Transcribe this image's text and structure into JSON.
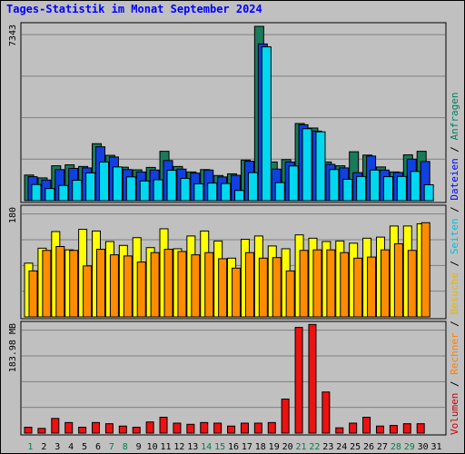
{
  "title": "Tages-Statistik im Monat September 2024",
  "right_legend": [
    {
      "text": "Volumen",
      "color": "#cc0000"
    },
    {
      "text": "Rechner",
      "color": "#ff8000"
    },
    {
      "text": "Besuche",
      "color": "#e6b800"
    },
    {
      "text": "Seiten",
      "color": "#00c0e0"
    },
    {
      "text": "Dateien",
      "color": "#0000ff"
    },
    {
      "text": "Anfragen",
      "color": "#008060"
    }
  ],
  "colors": {
    "anfragen": "#1a7a5a",
    "dateien": "#1040e0",
    "seiten": "#00d8f0",
    "besuche": "#ffff00",
    "rechner": "#ff8c00",
    "volumen": "#ee1111",
    "weekend_label": "#008040",
    "weekday_label": "#000000",
    "panel_bg": "#c0c0c0"
  },
  "chart_data": [
    {
      "type": "bar",
      "panel": "top",
      "y_max_label": "7343",
      "ylim": [
        0,
        7343
      ],
      "grid": true,
      "categories": [
        "1",
        "2",
        "3",
        "4",
        "5",
        "6",
        "7",
        "8",
        "9",
        "10",
        "11",
        "12",
        "13",
        "14",
        "15",
        "16",
        "17",
        "18",
        "19",
        "20",
        "21",
        "22",
        "23",
        "24",
        "25",
        "26",
        "27",
        "28",
        "29",
        "30",
        "31"
      ],
      "series": [
        {
          "name": "Anfragen",
          "values": [
            1080,
            960,
            1470,
            1510,
            1440,
            2400,
            1910,
            1410,
            1300,
            1400,
            2080,
            1440,
            1210,
            1310,
            1060,
            1130,
            1710,
            7343,
            1630,
            1730,
            3250,
            3060,
            1630,
            1470,
            2060,
            1920,
            1420,
            1210,
            1930,
            2080,
            0
          ]
        },
        {
          "name": "Dateien",
          "values": [
            1010,
            870,
            1310,
            1360,
            1380,
            2270,
            1840,
            1310,
            1210,
            1290,
            1690,
            1330,
            1160,
            1290,
            1000,
            1070,
            1660,
            6600,
            1330,
            1630,
            3200,
            2930,
            1530,
            1380,
            1180,
            1880,
            1290,
            1190,
            1750,
            1650,
            0
          ]
        },
        {
          "name": "Seiten",
          "values": [
            680,
            510,
            640,
            860,
            1170,
            1630,
            1420,
            1000,
            830,
            880,
            1280,
            940,
            710,
            740,
            720,
            430,
            1180,
            6480,
            760,
            1460,
            3030,
            2900,
            1310,
            900,
            1020,
            1290,
            1010,
            1020,
            1230,
            670,
            0
          ]
        }
      ]
    },
    {
      "type": "bar",
      "panel": "middle",
      "y_max_label": "180",
      "ylim": [
        0,
        195
      ],
      "grid": true,
      "categories": [
        "1",
        "2",
        "3",
        "4",
        "5",
        "6",
        "7",
        "8",
        "9",
        "10",
        "11",
        "12",
        "13",
        "14",
        "15",
        "16",
        "17",
        "18",
        "19",
        "20",
        "21",
        "22",
        "23",
        "24",
        "25",
        "26",
        "27",
        "28",
        "29",
        "30",
        "31"
      ],
      "series": [
        {
          "name": "Besuche",
          "values": [
            97,
            124,
            154,
            121,
            158,
            155,
            136,
            129,
            143,
            125,
            159,
            123,
            146,
            155,
            137,
            106,
            140,
            146,
            128,
            123,
            148,
            142,
            136,
            137,
            133,
            142,
            144,
            164,
            164,
            168,
            0
          ]
        },
        {
          "name": "Rechner",
          "values": [
            83,
            120,
            127,
            120,
            92,
            122,
            112,
            110,
            99,
            116,
            122,
            118,
            112,
            116,
            105,
            88,
            116,
            106,
            107,
            83,
            120,
            121,
            121,
            116,
            106,
            108,
            121,
            132,
            120,
            170,
            0
          ]
        }
      ]
    },
    {
      "type": "bar",
      "panel": "bottom",
      "y_max_label": "183.98 MB",
      "ylim": [
        0,
        183.98
      ],
      "grid": true,
      "categories": [
        "1",
        "2",
        "3",
        "4",
        "5",
        "6",
        "7",
        "8",
        "9",
        "10",
        "11",
        "12",
        "13",
        "14",
        "15",
        "16",
        "17",
        "18",
        "19",
        "20",
        "21",
        "22",
        "23",
        "24",
        "25",
        "26",
        "27",
        "28",
        "29",
        "30",
        "31"
      ],
      "series": [
        {
          "name": "Volumen",
          "values": [
            10,
            8,
            25,
            18,
            10,
            18,
            16,
            12,
            10,
            19,
            27,
            17,
            15,
            18,
            17,
            12,
            17,
            17,
            18,
            58,
            180,
            185,
            70,
            9,
            17,
            27,
            12,
            13,
            16,
            16,
            0
          ]
        }
      ]
    }
  ],
  "x_labels": [
    {
      "text": "1",
      "weekend": true
    },
    {
      "text": "2",
      "weekend": false
    },
    {
      "text": "3",
      "weekend": false
    },
    {
      "text": "4",
      "weekend": false
    },
    {
      "text": "5",
      "weekend": false
    },
    {
      "text": "6",
      "weekend": false
    },
    {
      "text": "7",
      "weekend": true
    },
    {
      "text": "8",
      "weekend": true
    },
    {
      "text": "9",
      "weekend": false
    },
    {
      "text": "10",
      "weekend": false
    },
    {
      "text": "11",
      "weekend": false
    },
    {
      "text": "12",
      "weekend": false
    },
    {
      "text": "13",
      "weekend": false
    },
    {
      "text": "14",
      "weekend": true
    },
    {
      "text": "15",
      "weekend": true
    },
    {
      "text": "16",
      "weekend": false
    },
    {
      "text": "17",
      "weekend": false
    },
    {
      "text": "18",
      "weekend": false
    },
    {
      "text": "19",
      "weekend": false
    },
    {
      "text": "20",
      "weekend": false
    },
    {
      "text": "21",
      "weekend": true
    },
    {
      "text": "22",
      "weekend": true
    },
    {
      "text": "23",
      "weekend": false
    },
    {
      "text": "24",
      "weekend": false
    },
    {
      "text": "25",
      "weekend": false
    },
    {
      "text": "26",
      "weekend": false
    },
    {
      "text": "27",
      "weekend": false
    },
    {
      "text": "28",
      "weekend": true
    },
    {
      "text": "29",
      "weekend": true
    },
    {
      "text": "30",
      "weekend": false
    },
    {
      "text": "31",
      "weekend": false
    }
  ]
}
